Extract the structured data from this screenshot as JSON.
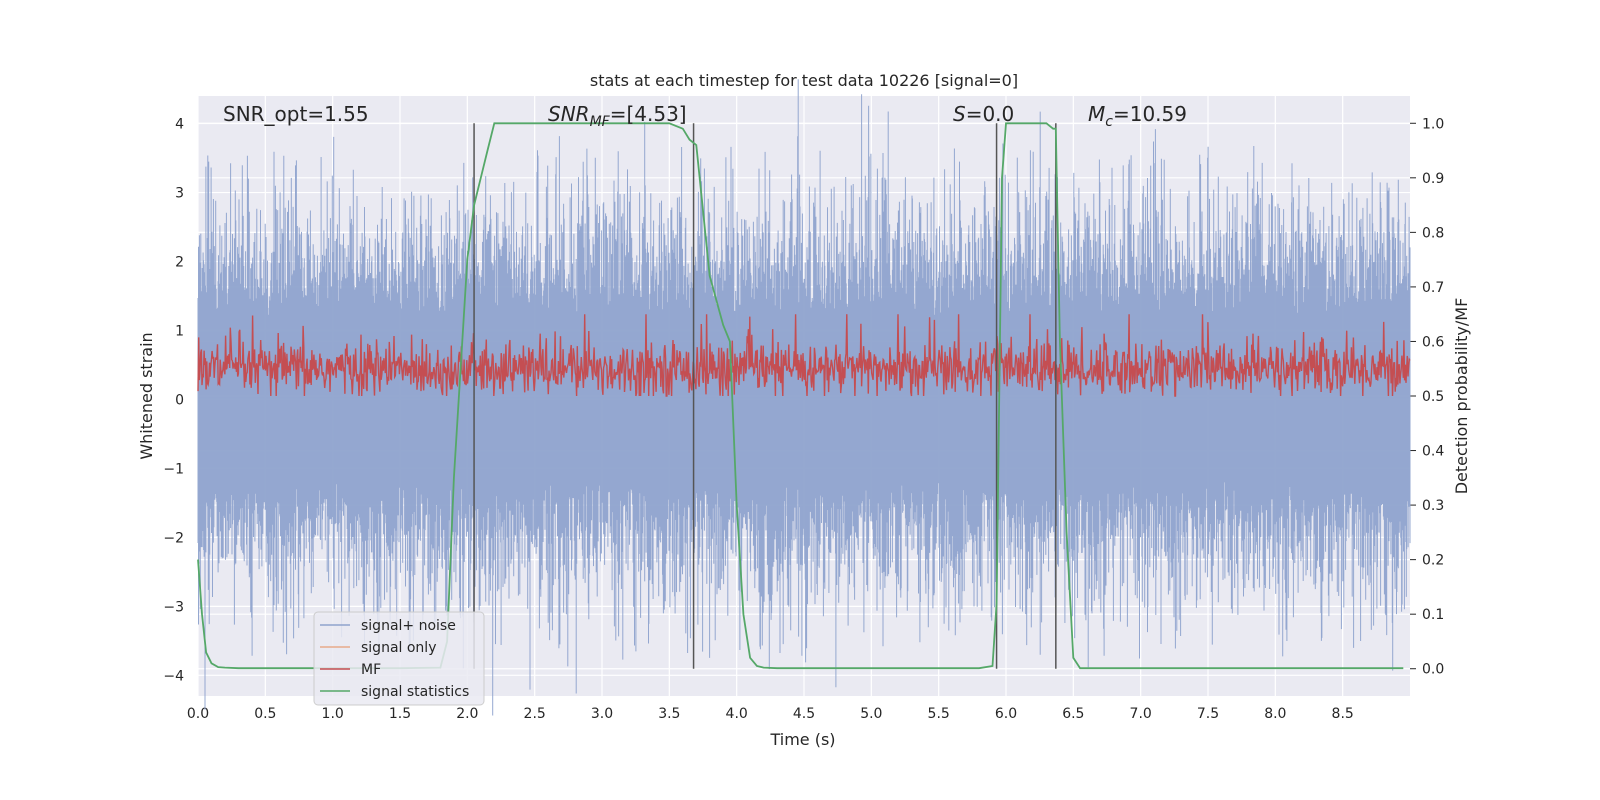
{
  "chart_data": {
    "type": "line",
    "title": "stats at each timestep for test data 10226 [signal=0]",
    "xlabel": "Time (s)",
    "ylabel": "Whitened strain",
    "ylabel_right": "Detection probability/MF",
    "xlim": [
      0.0,
      9.0
    ],
    "ylim": [
      -4.3,
      4.4
    ],
    "ylim_right": [
      -0.05,
      1.05
    ],
    "x_ticks": [
      "0.0",
      "0.5",
      "1.0",
      "1.5",
      "2.0",
      "2.5",
      "3.0",
      "3.5",
      "4.0",
      "4.5",
      "5.0",
      "5.5",
      "6.0",
      "6.5",
      "7.0",
      "7.5",
      "8.0",
      "8.5"
    ],
    "y_ticks": [
      "4",
      "3",
      "2",
      "1",
      "0",
      "−1",
      "−2",
      "−3",
      "−4"
    ],
    "y_ticks_right": [
      "1.0",
      "0.9",
      "0.8",
      "0.7",
      "0.6",
      "0.5",
      "0.4",
      "0.3",
      "0.2",
      "0.1",
      "0.0"
    ],
    "grid": true,
    "legend_position": "lower-left",
    "annotations": [
      {
        "id": "snr-opt",
        "text": "SNR_opt=1.55"
      },
      {
        "id": "snr-mf",
        "text": "SNR_MF=[4.53]",
        "main": "SNR",
        "sub": "MF",
        "rest": "=[4.53]"
      },
      {
        "id": "s-stat",
        "text": "S=0.0",
        "main": "S",
        "rest": "=0.0"
      },
      {
        "id": "mc",
        "text": "M_c=10.59",
        "main": "M",
        "sub": "c",
        "rest": "=10.59"
      }
    ],
    "vertical_lines_x": [
      2.05,
      3.68,
      5.93,
      6.37
    ],
    "series": [
      {
        "name": "signal+ noise",
        "color": "#8fa3cd",
        "description_kind": "noise",
        "amplitude_typical": 1.6,
        "amplitude_max": 3.7
      },
      {
        "name": "signal only",
        "color": "#e8a98a",
        "values": []
      },
      {
        "name": "MF",
        "color": "#c44e52",
        "description_kind": "noise",
        "mean_right_axis": 0.55
      },
      {
        "name": "signal statistics",
        "color": "#55a868",
        "axis": "right",
        "x": [
          0.0,
          0.03,
          0.06,
          0.1,
          0.15,
          0.2,
          0.3,
          1.5,
          1.8,
          1.85,
          1.9,
          2.0,
          2.05,
          2.1,
          2.15,
          2.2,
          3.5,
          3.6,
          3.65,
          3.7,
          3.8,
          3.9,
          3.95,
          4.0,
          4.05,
          4.1,
          4.15,
          4.2,
          4.3,
          5.8,
          5.9,
          5.93,
          5.97,
          6.0,
          6.3,
          6.35,
          6.37,
          6.4,
          6.45,
          6.5,
          6.55,
          8.95
        ],
        "y": [
          0.2,
          0.1,
          0.03,
          0.01,
          0.003,
          0.002,
          0.001,
          0.001,
          0.002,
          0.05,
          0.35,
          0.75,
          0.85,
          0.9,
          0.95,
          1.0,
          1.0,
          0.99,
          0.97,
          0.96,
          0.72,
          0.63,
          0.6,
          0.3,
          0.1,
          0.02,
          0.005,
          0.002,
          0.001,
          0.001,
          0.005,
          0.12,
          0.9,
          1.0,
          1.0,
          0.99,
          0.99,
          0.6,
          0.25,
          0.02,
          0.001,
          0.001
        ]
      }
    ]
  }
}
